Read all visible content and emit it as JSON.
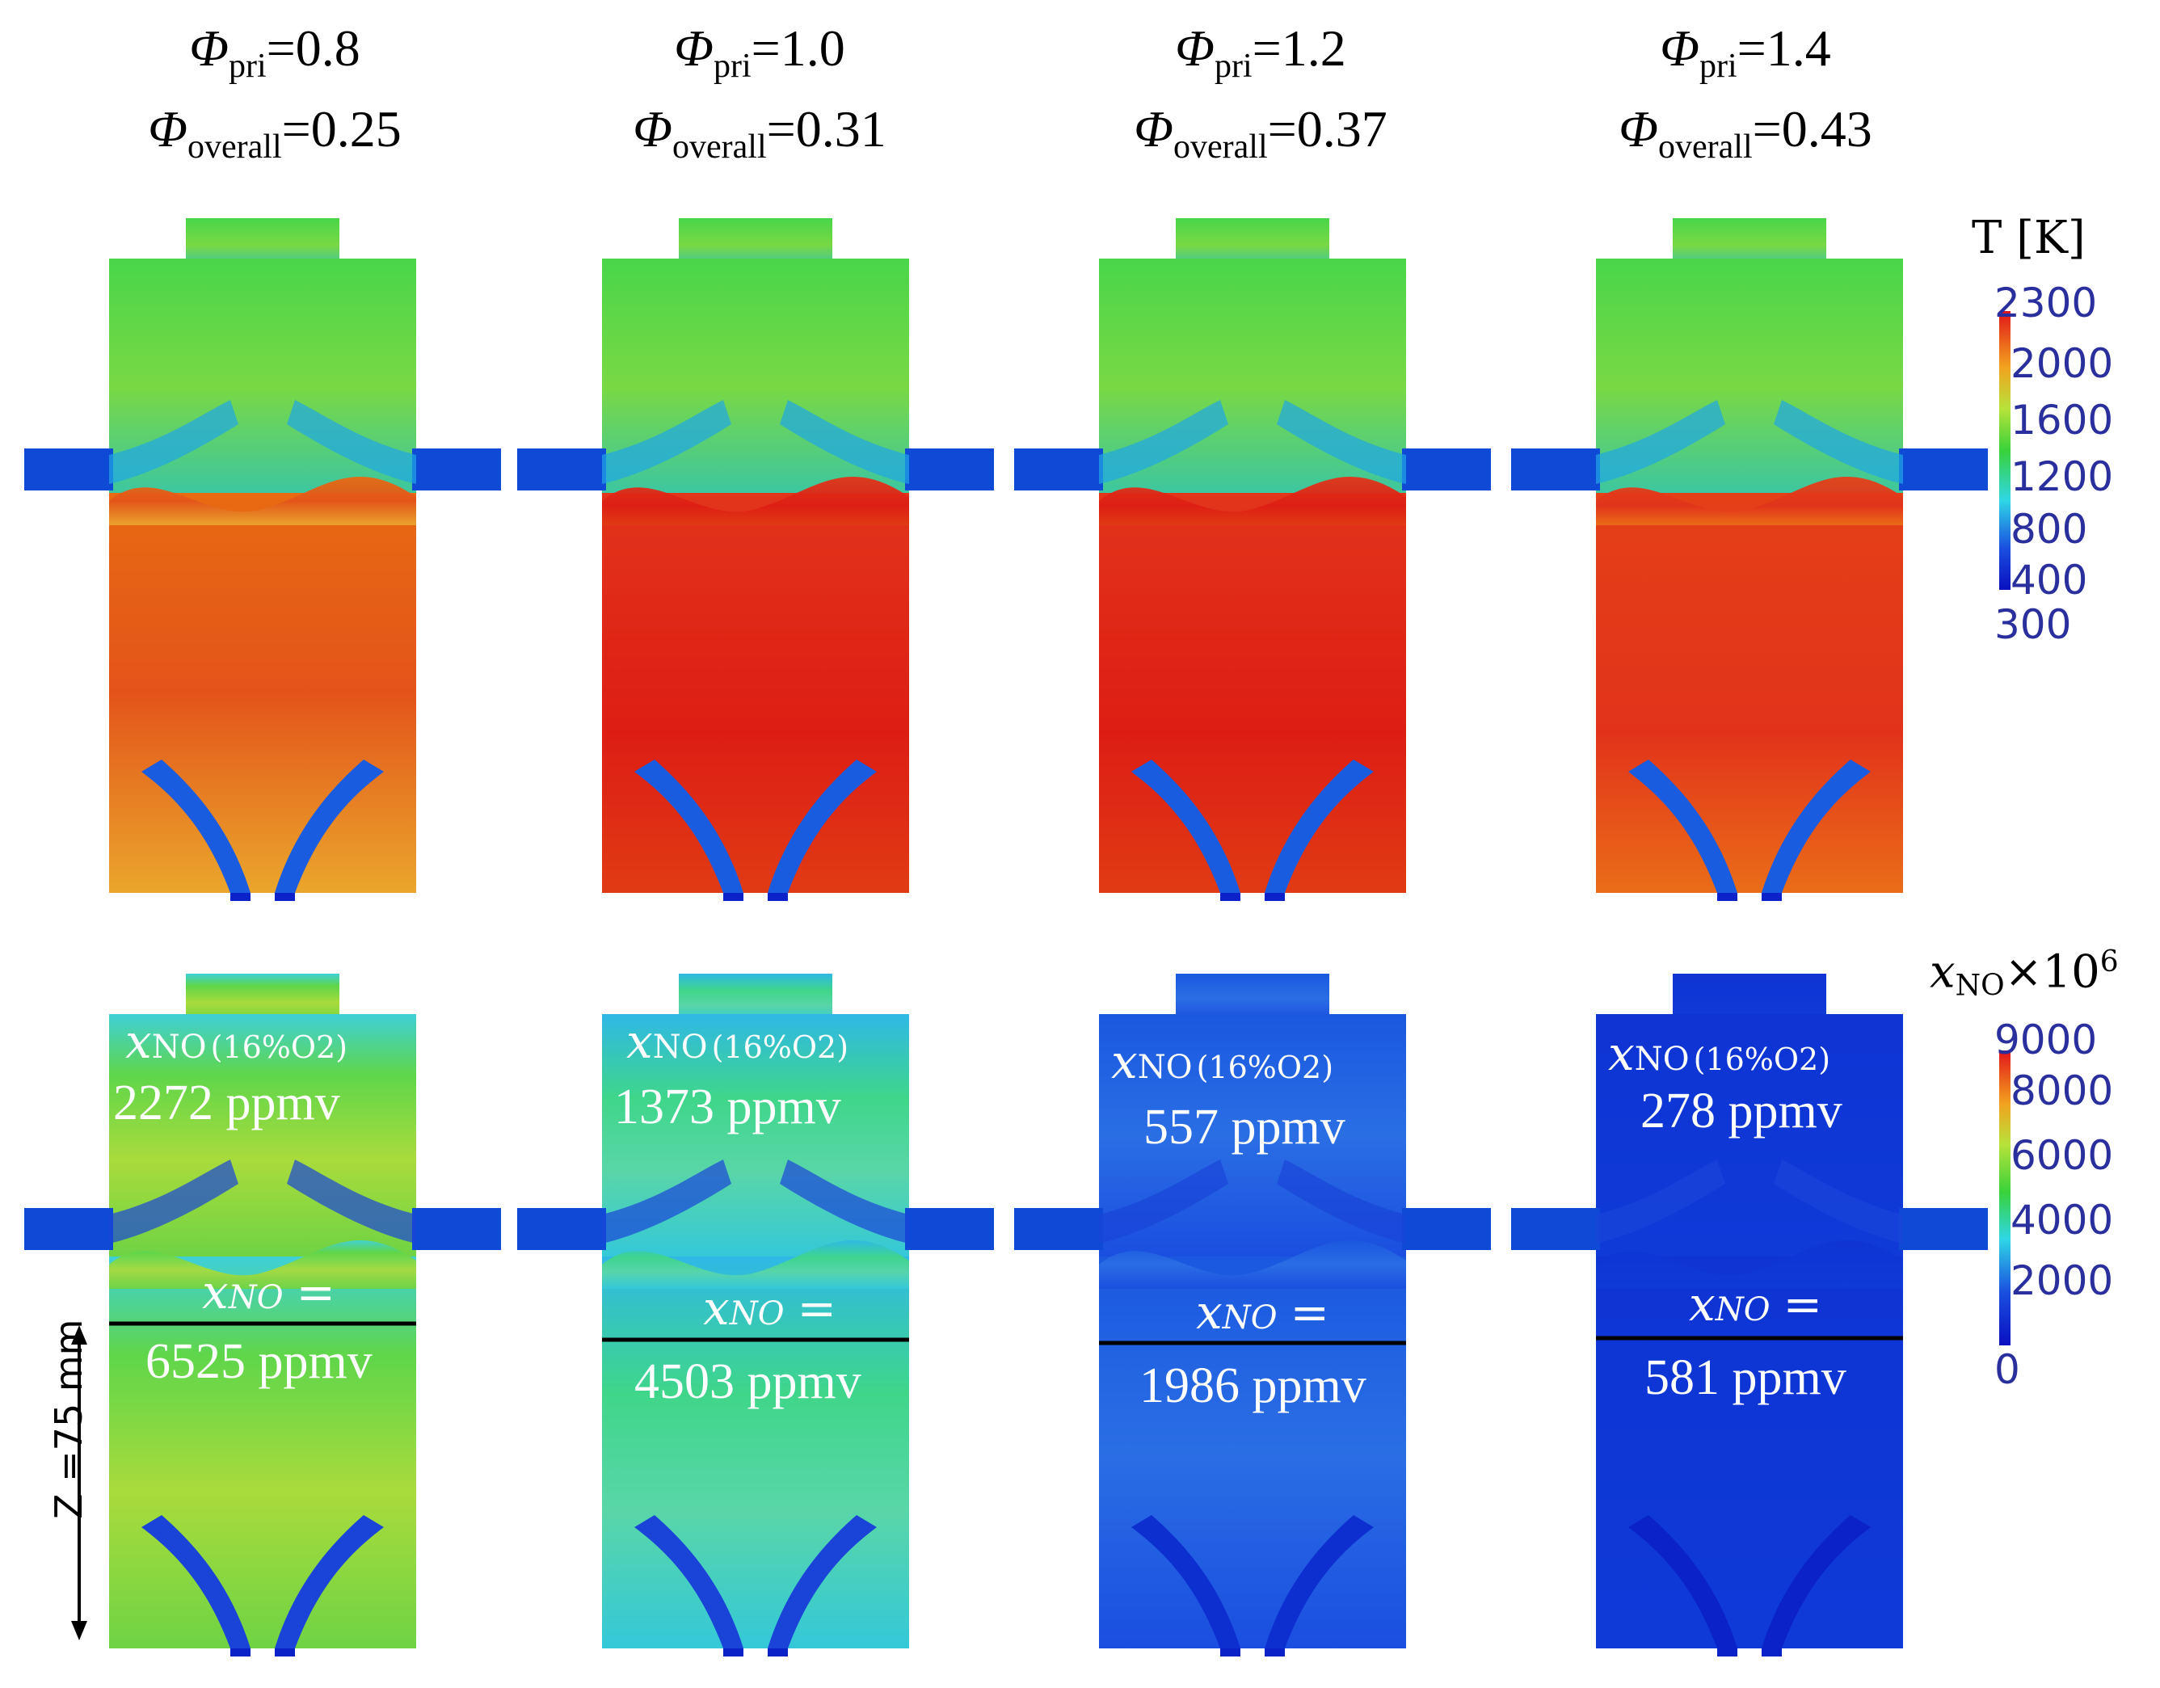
{
  "columns": [
    {
      "phi_pri_symbol": "Φ",
      "phi_pri_sub": "pri",
      "phi_pri_value": "=0.8",
      "phi_overall_symbol": "Φ",
      "phi_overall_sub": "overall",
      "phi_overall_value": "=0.25",
      "xno_label": "x",
      "xno_sub": "NO",
      "xno_cond": "(16%O2)",
      "xno_exit": "2272 ppmv",
      "xno_plane_label": "x",
      "xno_plane_sub": "NO",
      "xno_plane_eq": "=",
      "xno_plane": "6525 ppmv"
    },
    {
      "phi_pri_symbol": "Φ",
      "phi_pri_sub": "pri",
      "phi_pri_value": "=1.0",
      "phi_overall_symbol": "Φ",
      "phi_overall_sub": "overall",
      "phi_overall_value": "=0.31",
      "xno_label": "x",
      "xno_sub": "NO",
      "xno_cond": "(16%O2)",
      "xno_exit": "1373 ppmv",
      "xno_plane_label": "x",
      "xno_plane_sub": "NO",
      "xno_plane_eq": "=",
      "xno_plane": "4503 ppmv"
    },
    {
      "phi_pri_symbol": "Φ",
      "phi_pri_sub": "pri",
      "phi_pri_value": "=1.2",
      "phi_overall_symbol": "Φ",
      "phi_overall_sub": "overall",
      "phi_overall_value": "=0.37",
      "xno_label": "x",
      "xno_sub": "NO",
      "xno_cond": "(16%O2)",
      "xno_exit": "557 ppmv",
      "xno_plane_label": "x",
      "xno_plane_sub": "NO",
      "xno_plane_eq": "=",
      "xno_plane": "1986 ppmv"
    },
    {
      "phi_pri_symbol": "Φ",
      "phi_pri_sub": "pri",
      "phi_pri_value": "=1.4",
      "phi_overall_symbol": "Φ",
      "phi_overall_sub": "overall",
      "phi_overall_value": "=0.43",
      "xno_label": "x",
      "xno_sub": "NO",
      "xno_cond": "(16%O2)",
      "xno_exit": "278 ppmv",
      "xno_plane_label": "x",
      "xno_plane_sub": "NO",
      "xno_plane_eq": "=",
      "xno_plane": "581 ppmv"
    }
  ],
  "temperature_colorbar": {
    "title": "T [K]",
    "ticks": [
      "2300",
      "2000",
      "1600",
      "1200",
      "800",
      "400",
      "300"
    ]
  },
  "no_colorbar": {
    "title_x": "x",
    "title_sub": "NO",
    "title_factor": "×10",
    "title_exp": "6",
    "ticks": [
      "9000",
      "8000",
      "6000",
      "4000",
      "2000",
      "0"
    ]
  },
  "z_marker": "Z =75 mm",
  "colors": {
    "hot": "#e8200e",
    "warm": "#e86a12",
    "green": "#3fcf36",
    "cyan": "#2fd0d8",
    "blue": "#0b3fd6",
    "deepblue": "#0a1cb8"
  }
}
